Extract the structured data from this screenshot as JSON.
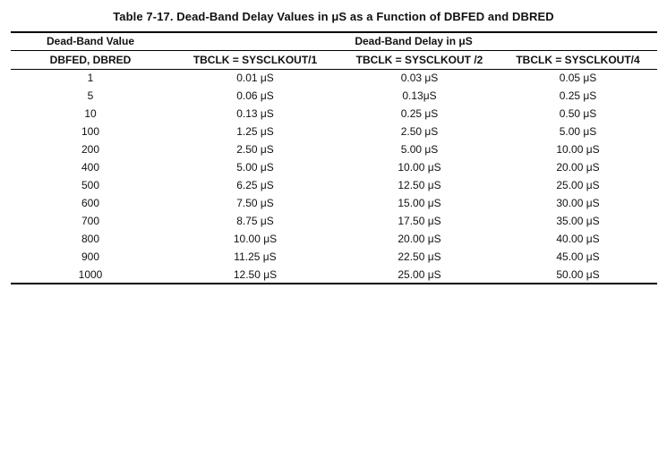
{
  "page": {
    "background_color": "#ffffff",
    "text_color": "#111111"
  },
  "title": "Table 7-17. Dead-Band Delay Values in μS as a Function of DBFED and DBRED",
  "table": {
    "group_headers": {
      "dead_band_value": "Dead-Band Value",
      "dead_band_delay": "Dead-Band Delay in μS"
    },
    "column_headers": [
      "DBFED, DBRED",
      "TBCLK = SYSCLKOUT/1",
      "TBCLK = SYSCLKOUT /2",
      "TBCLK = SYSCLKOUT/4"
    ],
    "rows": [
      [
        "1",
        "0.01 μS",
        "0.03 μS",
        "0.05 μS"
      ],
      [
        "5",
        "0.06 μS",
        "0.13μS",
        "0.25 μS"
      ],
      [
        "10",
        "0.13 μS",
        "0.25 μS",
        "0.50 μS"
      ],
      [
        "100",
        "1.25 μS",
        "2.50 μS",
        "5.00 μS"
      ],
      [
        "200",
        "2.50 μS",
        "5.00 μS",
        "10.00 μS"
      ],
      [
        "400",
        "5.00 μS",
        "10.00 μS",
        "20.00 μS"
      ],
      [
        "500",
        "6.25 μS",
        "12.50 μS",
        "25.00 μS"
      ],
      [
        "600",
        "7.50 μS",
        "15.00 μS",
        "30.00 μS"
      ],
      [
        "700",
        "8.75 μS",
        "17.50 μS",
        "35.00 μS"
      ],
      [
        "800",
        "10.00 μS",
        "20.00 μS",
        "40.00 μS"
      ],
      [
        "900",
        "11.25 μS",
        "22.50 μS",
        "45.00 μS"
      ],
      [
        "1000",
        "12.50 μS",
        "25.00 μS",
        "50.00 μS"
      ]
    ]
  }
}
